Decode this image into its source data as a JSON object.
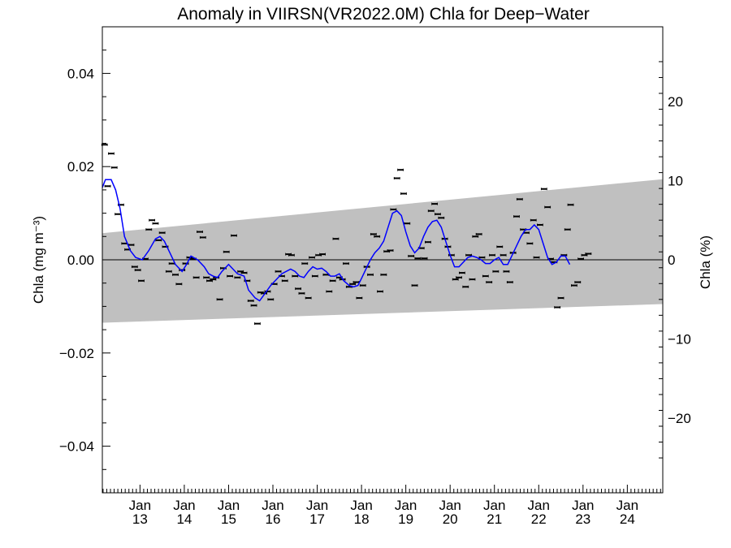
{
  "chart_data": {
    "type": "scatter",
    "title": "Anomaly in VIIRSN(VR2022.0M) Chla for Deep−Water",
    "ylabel_left": "Chla (mg m⁻³)",
    "ylabel_right": "Chla (%)",
    "ylim_left": [
      -0.05,
      0.05
    ],
    "ylim_right": [
      -29.4,
      29.4
    ],
    "xlim": [
      2012.15,
      2024.8
    ],
    "y_ticks_left": [
      "0.04",
      "0.02",
      "0.00",
      "−0.02",
      "−0.04"
    ],
    "y_ticks_left_values": [
      0.04,
      0.02,
      0.0,
      -0.02,
      -0.04
    ],
    "y_ticks_right": [
      "20",
      "10",
      "0",
      "−10",
      "−20"
    ],
    "y_ticks_right_values": [
      20,
      10,
      0,
      -10,
      -20
    ],
    "x_ticks": [
      {
        "top": "Jan",
        "bottom": "13",
        "x": 2013.0
      },
      {
        "top": "Jan",
        "bottom": "14",
        "x": 2014.0
      },
      {
        "top": "Jan",
        "bottom": "15",
        "x": 2015.0
      },
      {
        "top": "Jan",
        "bottom": "16",
        "x": 2016.0
      },
      {
        "top": "Jan",
        "bottom": "17",
        "x": 2017.0
      },
      {
        "top": "Jan",
        "bottom": "18",
        "x": 2018.0
      },
      {
        "top": "Jan",
        "bottom": "19",
        "x": 2019.0
      },
      {
        "top": "Jan",
        "bottom": "20",
        "x": 2020.0
      },
      {
        "top": "Jan",
        "bottom": "21",
        "x": 2021.0
      },
      {
        "top": "Jan",
        "bottom": "22",
        "x": 2022.0
      },
      {
        "top": "Jan",
        "bottom": "23",
        "x": 2023.0
      },
      {
        "top": "Jan",
        "bottom": "24",
        "x": 2024.0
      }
    ],
    "band": {
      "color": "#c0c0c0",
      "upper": [
        [
          2012.15,
          0.0057
        ],
        [
          2024.8,
          0.0173
        ]
      ],
      "lower": [
        [
          2012.15,
          -0.0135
        ],
        [
          2024.8,
          -0.0095
        ]
      ]
    },
    "zero_line": true,
    "colors": {
      "points": "#000000",
      "smooth": "#0000ff",
      "band": "#c0c0c0"
    },
    "points": [
      [
        2012.2,
        0.0247
      ],
      [
        2012.27,
        0.0158
      ],
      [
        2012.35,
        0.0228
      ],
      [
        2012.42,
        0.0198
      ],
      [
        2012.5,
        0.0098
      ],
      [
        2012.57,
        0.0118
      ],
      [
        2012.65,
        0.0035
      ],
      [
        2012.72,
        0.0022
      ],
      [
        2012.8,
        0.0032
      ],
      [
        2012.88,
        -0.0015
      ],
      [
        2012.95,
        -0.0022
      ],
      [
        2013.03,
        -0.0045
      ],
      [
        2013.12,
        0.0002
      ],
      [
        2013.2,
        0.0065
      ],
      [
        2013.27,
        0.0085
      ],
      [
        2013.35,
        0.0078
      ],
      [
        2013.42,
        0.0042
      ],
      [
        2013.5,
        0.0058
      ],
      [
        2013.57,
        0.0028
      ],
      [
        2013.65,
        -0.0025
      ],
      [
        2013.72,
        -0.0008
      ],
      [
        2013.8,
        -0.0032
      ],
      [
        2013.88,
        -0.0052
      ],
      [
        2013.95,
        -0.0022
      ],
      [
        2014.03,
        -0.0008
      ],
      [
        2014.12,
        0.0005
      ],
      [
        2014.2,
        0.0002
      ],
      [
        2014.27,
        -0.0038
      ],
      [
        2014.35,
        0.006
      ],
      [
        2014.42,
        0.0048
      ],
      [
        2014.5,
        -0.0038
      ],
      [
        2014.57,
        -0.0045
      ],
      [
        2014.65,
        -0.0042
      ],
      [
        2014.72,
        -0.0038
      ],
      [
        2014.8,
        -0.0085
      ],
      [
        2014.88,
        -0.0018
      ],
      [
        2014.95,
        0.0017
      ],
      [
        2015.03,
        -0.0035
      ],
      [
        2015.12,
        0.0052
      ],
      [
        2015.2,
        -0.0038
      ],
      [
        2015.27,
        -0.0025
      ],
      [
        2015.35,
        -0.0028
      ],
      [
        2015.42,
        -0.0045
      ],
      [
        2015.5,
        -0.0088
      ],
      [
        2015.57,
        -0.0098
      ],
      [
        2015.65,
        -0.0137
      ],
      [
        2015.72,
        -0.007
      ],
      [
        2015.8,
        -0.0072
      ],
      [
        2015.88,
        -0.0068
      ],
      [
        2015.95,
        -0.0085
      ],
      [
        2016.03,
        -0.0052
      ],
      [
        2016.12,
        -0.0025
      ],
      [
        2016.2,
        -0.0035
      ],
      [
        2016.27,
        -0.0045
      ],
      [
        2016.35,
        0.0012
      ],
      [
        2016.42,
        0.001
      ],
      [
        2016.5,
        -0.0035
      ],
      [
        2016.57,
        -0.0062
      ],
      [
        2016.65,
        -0.0072
      ],
      [
        2016.72,
        -0.0008
      ],
      [
        2016.8,
        -0.0082
      ],
      [
        2016.88,
        0.0005
      ],
      [
        2016.95,
        -0.0035
      ],
      [
        2017.03,
        0.001
      ],
      [
        2017.12,
        0.0012
      ],
      [
        2017.2,
        -0.0032
      ],
      [
        2017.27,
        -0.0068
      ],
      [
        2017.35,
        -0.0045
      ],
      [
        2017.42,
        0.0045
      ],
      [
        2017.5,
        -0.0038
      ],
      [
        2017.57,
        -0.0042
      ],
      [
        2017.65,
        -0.0008
      ],
      [
        2017.72,
        -0.0058
      ],
      [
        2017.8,
        -0.0052
      ],
      [
        2017.88,
        -0.0048
      ],
      [
        2017.95,
        -0.0082
      ],
      [
        2018.03,
        -0.0055
      ],
      [
        2018.12,
        -0.0015
      ],
      [
        2018.2,
        -0.0032
      ],
      [
        2018.27,
        0.0055
      ],
      [
        2018.35,
        0.005
      ],
      [
        2018.42,
        -0.0068
      ],
      [
        2018.5,
        -0.0032
      ],
      [
        2018.57,
        0.0018
      ],
      [
        2018.65,
        0.002
      ],
      [
        2018.72,
        0.0108
      ],
      [
        2018.8,
        0.0175
      ],
      [
        2018.88,
        0.0193
      ],
      [
        2018.95,
        0.0142
      ],
      [
        2019.03,
        0.0078
      ],
      [
        2019.12,
        0.0008
      ],
      [
        2019.2,
        -0.0055
      ],
      [
        2019.27,
        0.0003
      ],
      [
        2019.35,
        0.0025
      ],
      [
        2019.42,
        0.0003
      ],
      [
        2019.5,
        0.0038
      ],
      [
        2019.57,
        0.0105
      ],
      [
        2019.65,
        0.012
      ],
      [
        2019.72,
        0.0098
      ],
      [
        2019.8,
        0.009
      ],
      [
        2019.88,
        0.0045
      ],
      [
        2019.95,
        0.0028
      ],
      [
        2020.03,
        0.001
      ],
      [
        2020.12,
        -0.0042
      ],
      [
        2020.2,
        -0.0038
      ],
      [
        2020.27,
        -0.0028
      ],
      [
        2020.35,
        -0.0058
      ],
      [
        2020.42,
        0.001
      ],
      [
        2020.5,
        -0.0042
      ],
      [
        2020.57,
        0.005
      ],
      [
        2020.65,
        0.0055
      ],
      [
        2020.72,
        0.0005
      ],
      [
        2020.8,
        -0.0035
      ],
      [
        2020.88,
        -0.0048
      ],
      [
        2020.95,
        0.001
      ],
      [
        2021.03,
        -0.0025
      ],
      [
        2021.12,
        0.0028
      ],
      [
        2021.2,
        0.001
      ],
      [
        2021.27,
        -0.0025
      ],
      [
        2021.35,
        -0.0048
      ],
      [
        2021.42,
        0.0015
      ],
      [
        2021.5,
        0.0093
      ],
      [
        2021.57,
        0.013
      ],
      [
        2021.65,
        0.0065
      ],
      [
        2021.72,
        0.0058
      ],
      [
        2021.8,
        0.0035
      ],
      [
        2021.88,
        0.0085
      ],
      [
        2021.95,
        0.0005
      ],
      [
        2022.03,
        0.0075
      ],
      [
        2022.12,
        0.0152
      ],
      [
        2022.2,
        0.0113
      ],
      [
        2022.27,
        0.0002
      ],
      [
        2022.35,
        -0.0005
      ],
      [
        2022.42,
        -0.0102
      ],
      [
        2022.5,
        -0.0082
      ],
      [
        2022.57,
        0.001
      ],
      [
        2022.65,
        0.0065
      ],
      [
        2022.72,
        0.0118
      ],
      [
        2022.8,
        -0.0055
      ],
      [
        2022.88,
        -0.0048
      ],
      [
        2022.95,
        0.0002
      ],
      [
        2023.03,
        0.001
      ],
      [
        2023.12,
        0.0013
      ]
    ],
    "smooth": [
      [
        2012.15,
        0.0155
      ],
      [
        2012.22,
        0.0172
      ],
      [
        2012.35,
        0.0172
      ],
      [
        2012.45,
        0.015
      ],
      [
        2012.55,
        0.011
      ],
      [
        2012.65,
        0.005
      ],
      [
        2012.78,
        0.002
      ],
      [
        2012.9,
        0.0005
      ],
      [
        2013.05,
        0.0
      ],
      [
        2013.2,
        0.002
      ],
      [
        2013.35,
        0.0045
      ],
      [
        2013.45,
        0.005
      ],
      [
        2013.55,
        0.004
      ],
      [
        2013.65,
        0.002
      ],
      [
        2013.8,
        -0.001
      ],
      [
        2013.95,
        -0.0025
      ],
      [
        2014.05,
        -0.001
      ],
      [
        2014.15,
        0.0008
      ],
      [
        2014.3,
        0.0
      ],
      [
        2014.45,
        -0.0015
      ],
      [
        2014.55,
        -0.003
      ],
      [
        2014.65,
        -0.0035
      ],
      [
        2014.75,
        -0.0038
      ],
      [
        2014.85,
        -0.0025
      ],
      [
        2015.0,
        -0.001
      ],
      [
        2015.1,
        -0.002
      ],
      [
        2015.2,
        -0.003
      ],
      [
        2015.35,
        -0.0035
      ],
      [
        2015.45,
        -0.0065
      ],
      [
        2015.6,
        -0.0082
      ],
      [
        2015.7,
        -0.0088
      ],
      [
        2015.8,
        -0.0075
      ],
      [
        2015.95,
        -0.0055
      ],
      [
        2016.1,
        -0.004
      ],
      [
        2016.2,
        -0.003
      ],
      [
        2016.3,
        -0.0025
      ],
      [
        2016.4,
        -0.002
      ],
      [
        2016.5,
        -0.0025
      ],
      [
        2016.6,
        -0.0035
      ],
      [
        2016.7,
        -0.0038
      ],
      [
        2016.8,
        -0.0025
      ],
      [
        2016.9,
        -0.0015
      ],
      [
        2017.0,
        -0.002
      ],
      [
        2017.1,
        -0.0018
      ],
      [
        2017.2,
        -0.0025
      ],
      [
        2017.3,
        -0.0035
      ],
      [
        2017.4,
        -0.0035
      ],
      [
        2017.5,
        -0.003
      ],
      [
        2017.6,
        -0.0045
      ],
      [
        2017.72,
        -0.0055
      ],
      [
        2017.82,
        -0.0058
      ],
      [
        2017.92,
        -0.0055
      ],
      [
        2018.0,
        -0.004
      ],
      [
        2018.1,
        -0.002
      ],
      [
        2018.2,
        0.0
      ],
      [
        2018.3,
        0.0015
      ],
      [
        2018.4,
        0.0025
      ],
      [
        2018.5,
        0.004
      ],
      [
        2018.6,
        0.007
      ],
      [
        2018.7,
        0.01
      ],
      [
        2018.8,
        0.0105
      ],
      [
        2018.9,
        0.0095
      ],
      [
        2019.0,
        0.006
      ],
      [
        2019.1,
        0.003
      ],
      [
        2019.2,
        0.0015
      ],
      [
        2019.3,
        0.0025
      ],
      [
        2019.4,
        0.005
      ],
      [
        2019.5,
        0.007
      ],
      [
        2019.6,
        0.0082
      ],
      [
        2019.7,
        0.0085
      ],
      [
        2019.8,
        0.007
      ],
      [
        2019.9,
        0.004
      ],
      [
        2020.0,
        0.001
      ],
      [
        2020.1,
        -0.0015
      ],
      [
        2020.2,
        -0.0015
      ],
      [
        2020.3,
        -0.0005
      ],
      [
        2020.4,
        0.0005
      ],
      [
        2020.5,
        0.0008
      ],
      [
        2020.6,
        0.0005
      ],
      [
        2020.7,
        0.0
      ],
      [
        2020.8,
        -0.0008
      ],
      [
        2020.9,
        -0.0008
      ],
      [
        2021.0,
        0.0
      ],
      [
        2021.1,
        0.0005
      ],
      [
        2021.2,
        -0.001
      ],
      [
        2021.3,
        -0.001
      ],
      [
        2021.4,
        0.001
      ],
      [
        2021.5,
        0.003
      ],
      [
        2021.6,
        0.005
      ],
      [
        2021.7,
        0.0065
      ],
      [
        2021.8,
        0.0065
      ],
      [
        2021.9,
        0.0075
      ],
      [
        2022.0,
        0.0065
      ],
      [
        2022.1,
        0.0035
      ],
      [
        2022.2,
        0.0005
      ],
      [
        2022.3,
        -0.001
      ],
      [
        2022.4,
        -0.0005
      ],
      [
        2022.5,
        0.0008
      ],
      [
        2022.6,
        0.0008
      ],
      [
        2022.7,
        -0.001
      ]
    ]
  }
}
